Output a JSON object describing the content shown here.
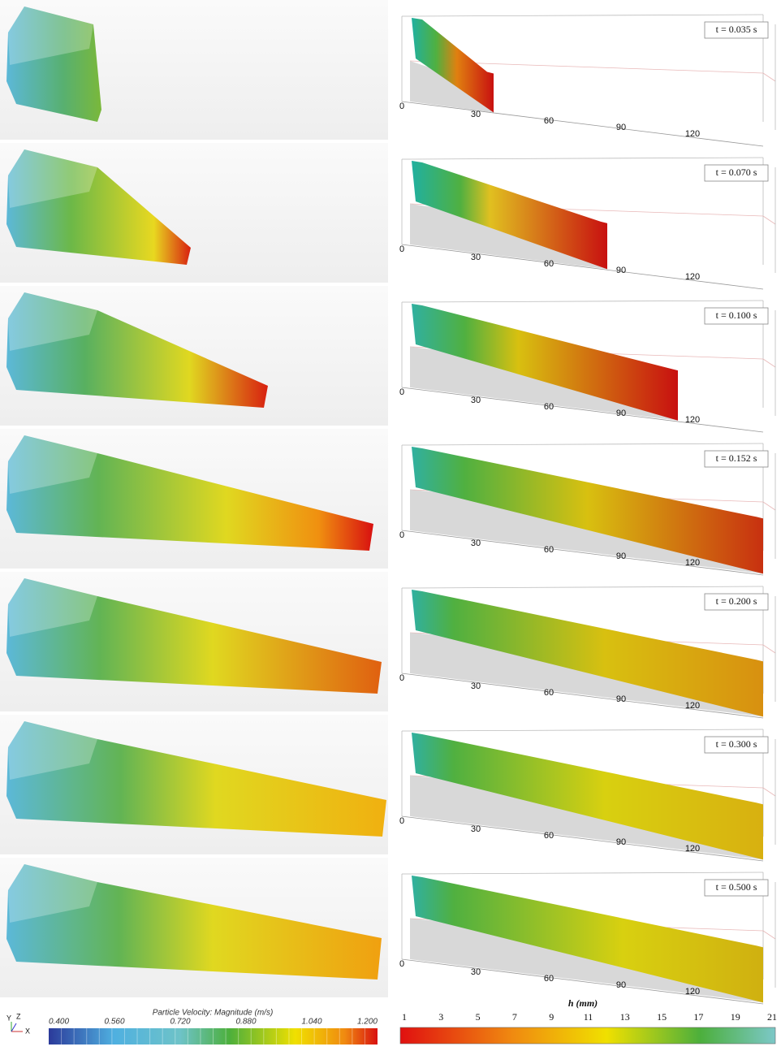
{
  "panels": [
    {
      "time": "t = 0.035 s",
      "ticks": [
        "0",
        "30",
        "60",
        "90",
        "120"
      ]
    },
    {
      "time": "t = 0.070 s",
      "ticks": [
        "0",
        "30",
        "60",
        "90",
        "120"
      ]
    },
    {
      "time": "t = 0.100 s",
      "ticks": [
        "0",
        "30",
        "60",
        "90",
        "120"
      ]
    },
    {
      "time": "t = 0.152 s",
      "ticks": [
        "0",
        "30",
        "60",
        "90",
        "120"
      ]
    },
    {
      "time": "t = 0.200 s",
      "ticks": [
        "0",
        "30",
        "60",
        "90",
        "120"
      ]
    },
    {
      "time": "t = 0.300 s",
      "ticks": [
        "0",
        "30",
        "60",
        "90",
        "120"
      ]
    },
    {
      "time": "t = 0.500 s",
      "ticks": [
        "0",
        "30",
        "60",
        "90",
        "120"
      ]
    }
  ],
  "legend_velocity": {
    "title": "Particle Velocity: Magnitude (m/s)",
    "labels": [
      "0.400",
      "0.560",
      "0.720",
      "0.880",
      "1.040",
      "1.200"
    ]
  },
  "legend_h": {
    "title": "h (mm)",
    "labels": [
      "1",
      "3",
      "5",
      "7",
      "9",
      "11",
      "13",
      "15",
      "17",
      "19",
      "21"
    ]
  },
  "triad": [
    "Y",
    "Z",
    "X"
  ]
}
